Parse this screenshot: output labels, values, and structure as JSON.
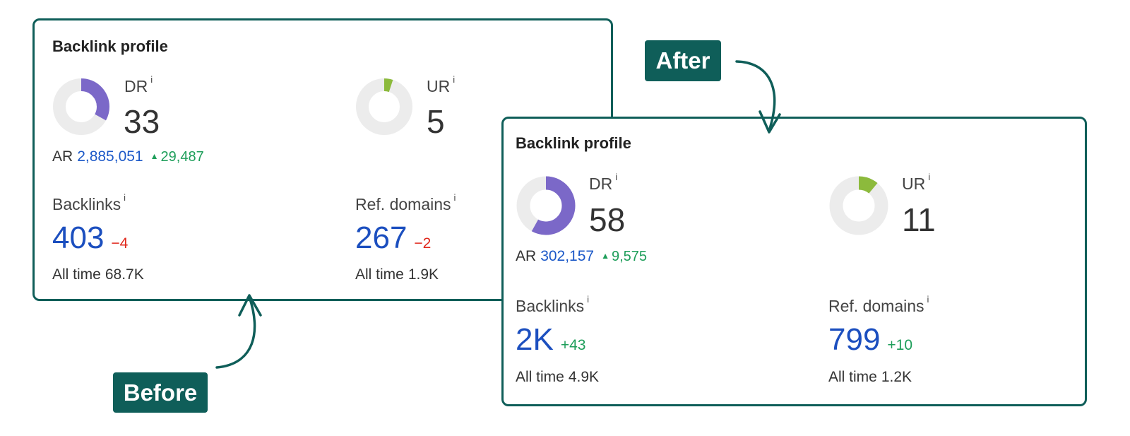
{
  "before": {
    "title": "Backlink profile",
    "dr": {
      "label": "DR",
      "info": "i",
      "value": "33",
      "fraction": 0.33
    },
    "ur": {
      "label": "UR",
      "info": "i",
      "value": "5",
      "fraction": 0.05
    },
    "ar": {
      "label": "AR",
      "value": "2,885,051",
      "change": "29,487"
    },
    "backlinks": {
      "label": "Backlinks",
      "info": "i",
      "value": "403",
      "change": "−4",
      "all_time_label": "All time",
      "all_time_value": "68.7K"
    },
    "ref_domains": {
      "label": "Ref. domains",
      "info": "i",
      "value": "267",
      "change": "−2",
      "all_time_label": "All time",
      "all_time_value": "1.9K"
    }
  },
  "after": {
    "title": "Backlink profile",
    "dr": {
      "label": "DR",
      "info": "i",
      "value": "58",
      "fraction": 0.58
    },
    "ur": {
      "label": "UR",
      "info": "i",
      "value": "11",
      "fraction": 0.11
    },
    "ar": {
      "label": "AR",
      "value": "302,157",
      "change": "9,575"
    },
    "backlinks": {
      "label": "Backlinks",
      "info": "i",
      "value": "2K",
      "change": "+43",
      "all_time_label": "All time",
      "all_time_value": "4.9K"
    },
    "ref_domains": {
      "label": "Ref. domains",
      "info": "i",
      "value": "799",
      "change": "+10",
      "all_time_label": "All time",
      "all_time_value": "1.2K"
    }
  },
  "tags": {
    "before": "Before",
    "after": "After"
  },
  "colors": {
    "frame": "#0f5e59",
    "dr": "#7b68c8",
    "ur": "#8cba3c",
    "track": "#ececec",
    "link_blue": "#1c4fbf",
    "positive": "#1e9e5a",
    "negative": "#e0281c"
  }
}
